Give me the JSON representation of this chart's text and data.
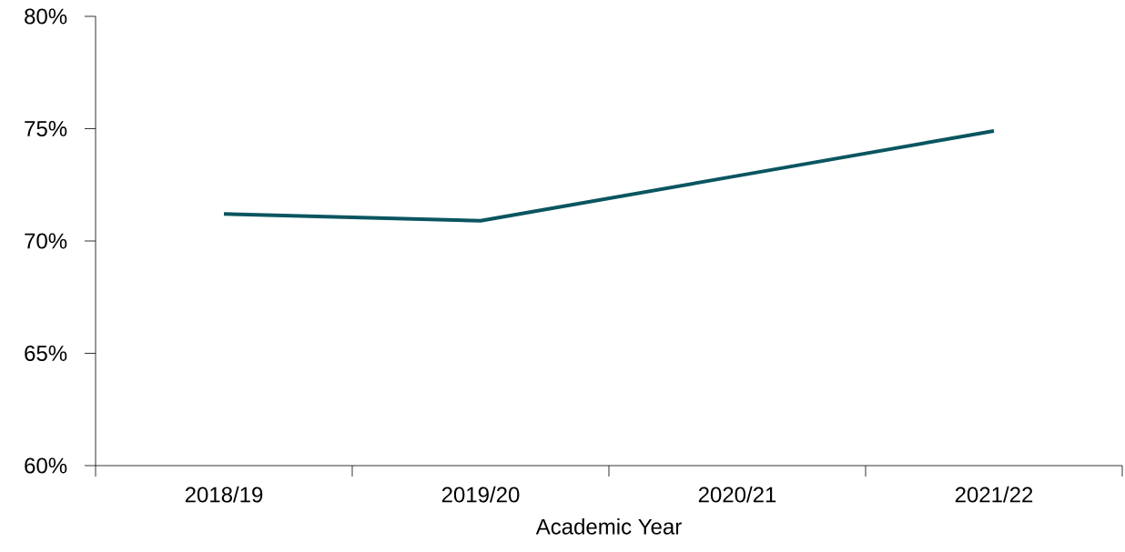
{
  "chart_data": {
    "type": "line",
    "xlabel": "Academic Year",
    "categories": [
      "2018/19",
      "2019/20",
      "2020/21",
      "2021/22"
    ],
    "values": [
      71.2,
      70.9,
      72.9,
      74.9
    ],
    "color": "#0a5560",
    "ylim": [
      60,
      80
    ],
    "yticks": [
      {
        "value": 60,
        "label": "60%"
      },
      {
        "value": 65,
        "label": "65%"
      },
      {
        "value": 70,
        "label": "70%"
      },
      {
        "value": 75,
        "label": "75%"
      },
      {
        "value": 80,
        "label": "80%"
      }
    ]
  }
}
